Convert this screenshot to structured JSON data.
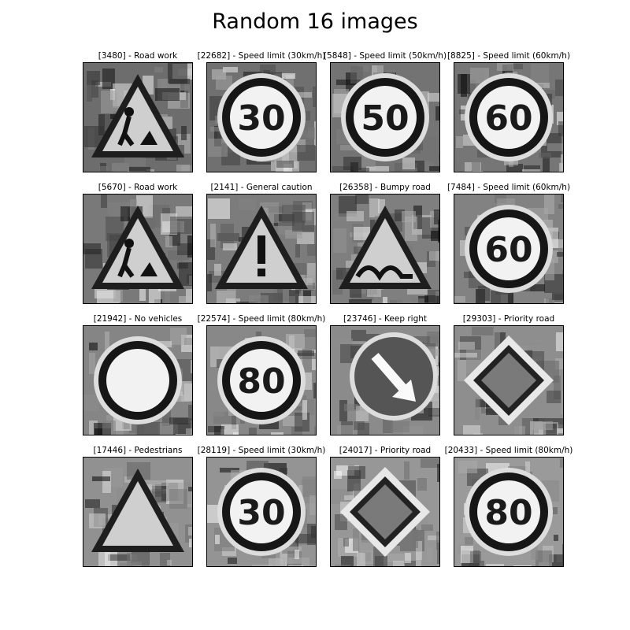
{
  "title": "Random 16 images",
  "images": [
    {
      "index": "3480",
      "label": "Road work",
      "caption": "[3480] - Road work",
      "sign": "triangle",
      "glyph": "work"
    },
    {
      "index": "22682",
      "label": "Speed limit (30km/h)",
      "caption": "[22682] - Speed limit (30km/h)",
      "sign": "circle",
      "glyph": "30"
    },
    {
      "index": "5848",
      "label": "Speed limit (50km/h)",
      "caption": "[5848] - Speed limit (50km/h)",
      "sign": "circle",
      "glyph": "50"
    },
    {
      "index": "8825",
      "label": "Speed limit (60km/h)",
      "caption": "[8825] - Speed limit (60km/h)",
      "sign": "circle",
      "glyph": "60"
    },
    {
      "index": "5670",
      "label": "Road work",
      "caption": "[5670] - Road work",
      "sign": "triangle",
      "glyph": "work"
    },
    {
      "index": "2141",
      "label": "General caution",
      "caption": "[2141] - General caution",
      "sign": "triangle",
      "glyph": "!"
    },
    {
      "index": "26358",
      "label": "Bumpy road",
      "caption": "[26358] - Bumpy road",
      "sign": "triangle",
      "glyph": "bumps"
    },
    {
      "index": "7484",
      "label": "Speed limit (60km/h)",
      "caption": "[7484] - Speed limit (60km/h)",
      "sign": "circle",
      "glyph": "60"
    },
    {
      "index": "21942",
      "label": "No vehicles",
      "caption": "[21942] - No vehicles",
      "sign": "circle",
      "glyph": ""
    },
    {
      "index": "22574",
      "label": "Speed limit (80km/h)",
      "caption": "[22574] - Speed limit (80km/h)",
      "sign": "circle",
      "glyph": "80"
    },
    {
      "index": "23746",
      "label": "Keep right",
      "caption": "[23746] - Keep right",
      "sign": "arrow",
      "glyph": ""
    },
    {
      "index": "29303",
      "label": "Priority road",
      "caption": "[29303] - Priority road",
      "sign": "diamond",
      "glyph": ""
    },
    {
      "index": "17446",
      "label": "Pedestrians",
      "caption": "[17446] - Pedestrians",
      "sign": "triangle",
      "glyph": ""
    },
    {
      "index": "28119",
      "label": "Speed limit (30km/h)",
      "caption": "[28119] - Speed limit (30km/h)",
      "sign": "circle",
      "glyph": "30"
    },
    {
      "index": "24017",
      "label": "Priority road",
      "caption": "[24017] - Priority road",
      "sign": "diamond",
      "glyph": ""
    },
    {
      "index": "20433",
      "label": "Speed limit (80km/h)",
      "caption": "[20433] - Speed limit (80km/h)",
      "sign": "circle",
      "glyph": "80"
    }
  ]
}
